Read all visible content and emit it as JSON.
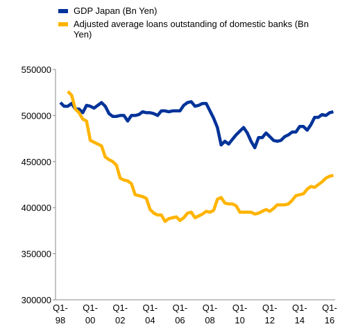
{
  "chart_data": {
    "type": "line",
    "categories": [
      "Q1-98",
      null,
      null,
      null,
      null,
      null,
      null,
      null,
      "Q1-00",
      null,
      null,
      null,
      null,
      null,
      null,
      null,
      "Q1-02",
      null,
      null,
      null,
      null,
      null,
      null,
      null,
      "Q1-04",
      null,
      null,
      null,
      null,
      null,
      null,
      null,
      "Q1-06",
      null,
      null,
      null,
      null,
      null,
      null,
      null,
      "Q1-08",
      null,
      null,
      null,
      null,
      null,
      null,
      null,
      "Q1-10",
      null,
      null,
      null,
      null,
      null,
      null,
      null,
      "Q1-12",
      null,
      null,
      null,
      null,
      null,
      null,
      null,
      "Q1-14",
      null,
      null,
      null,
      null,
      null,
      null,
      null,
      "Q1-16",
      null
    ],
    "series": [
      {
        "name": "GDP Japan (Bn Yen)",
        "color": "#003399",
        "values": [
          514000,
          510000,
          510000,
          513000,
          507000,
          507000,
          503000,
          511000,
          510000,
          508000,
          511000,
          514000,
          510000,
          502000,
          499000,
          499000,
          500000,
          500000,
          494000,
          500000,
          500000,
          501000,
          504000,
          503000,
          503000,
          502000,
          500000,
          505000,
          505000,
          504000,
          505000,
          505000,
          505000,
          511000,
          514000,
          515000,
          510000,
          511000,
          513000,
          513000,
          505000,
          497000,
          487000,
          468000,
          472000,
          469000,
          474000,
          479000,
          483000,
          487000,
          481000,
          472000,
          465000,
          476000,
          476000,
          481000,
          477000,
          473000,
          472000,
          473000,
          477000,
          479000,
          482000,
          482000,
          488000,
          488000,
          484000,
          490000,
          498000,
          498000,
          501000,
          500000,
          503000,
          504000
        ]
      },
      {
        "name": "Adjusted average loans outstanding of domestic banks (Bn Yen)",
        "color": "#ffb400",
        "values": [
          null,
          null,
          526000,
          522000,
          507000,
          503000,
          496000,
          494000,
          473000,
          471000,
          469000,
          467000,
          455000,
          452000,
          450000,
          446000,
          432000,
          430000,
          429000,
          426000,
          414000,
          413000,
          412000,
          410000,
          398000,
          394000,
          392000,
          392000,
          385000,
          388000,
          389000,
          390000,
          386000,
          389000,
          394000,
          395000,
          389000,
          391000,
          393000,
          396000,
          395000,
          397000,
          409000,
          411000,
          405000,
          404000,
          404000,
          402000,
          395000,
          395000,
          395000,
          395000,
          393000,
          394000,
          396000,
          398000,
          396000,
          399000,
          403000,
          403000,
          403000,
          404000,
          408000,
          413000,
          414000,
          415000,
          420000,
          423000,
          422000,
          425000,
          428000,
          432000,
          434000,
          435000
        ]
      }
    ],
    "ylim": [
      300000,
      550000
    ],
    "yticks": [
      300000,
      350000,
      400000,
      450000,
      500000,
      550000
    ],
    "grid": false
  }
}
